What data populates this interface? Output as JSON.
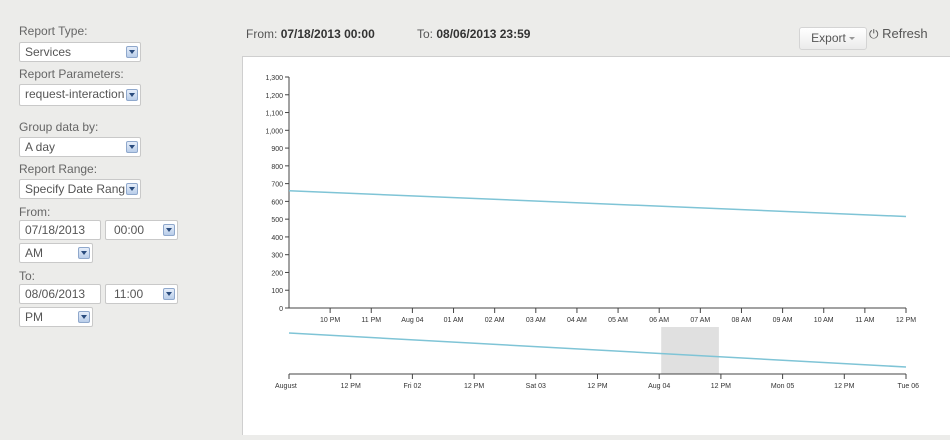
{
  "sidebar": {
    "report_type_label": "Report Type:",
    "report_type_value": "Services",
    "report_params_label": "Report Parameters:",
    "report_params_value": "request-interaction",
    "group_by_label": "Group data by:",
    "group_by_value": "A day",
    "report_range_label": "Report Range:",
    "report_range_value": "Specify Date Rang",
    "from_label": "From:",
    "from_date": "07/18/2013",
    "from_time": "00:00",
    "from_ampm": "AM",
    "to_label": "To:",
    "to_date": "08/06/2013",
    "to_time": "11:00",
    "to_ampm": "PM"
  },
  "header": {
    "from_label": "From:",
    "from_value": "07/18/2013 00:00",
    "to_label": "To:",
    "to_value": "08/06/2013 23:59",
    "export_label": "Export",
    "refresh_label": "Refresh"
  },
  "colors": {
    "line": "#7fc4d6",
    "brush": "#e0e0e0",
    "background": "#ececea"
  },
  "chart_data": [
    {
      "type": "line",
      "ylim": [
        0,
        1300
      ],
      "y_ticks": [
        "0",
        "100",
        "200",
        "300",
        "400",
        "500",
        "600",
        "700",
        "800",
        "900",
        "1,000",
        "1,100",
        "1,200",
        "1,300"
      ],
      "x_tick_labels": [
        "10 PM",
        "11 PM",
        "Aug 04",
        "01 AM",
        "02 AM",
        "03 AM",
        "04 AM",
        "05 AM",
        "06 AM",
        "07 AM",
        "08 AM",
        "09 AM",
        "10 AM",
        "11 AM",
        "12 PM"
      ],
      "series": [
        {
          "x": [
            "start",
            "end"
          ],
          "values": [
            660,
            515
          ]
        }
      ],
      "grid": false
    },
    {
      "type": "line",
      "x_tick_labels": [
        "August",
        "12 PM",
        "Fri 02",
        "12 PM",
        "Sat 03",
        "12 PM",
        "Aug 04",
        "12 PM",
        "Mon 05",
        "12 PM",
        "Tue 06"
      ],
      "series": [
        {
          "x": [
            "start",
            "end"
          ],
          "values": [
            660,
            515
          ]
        }
      ],
      "brush_range": [
        "Aug 04",
        "12 PM"
      ]
    }
  ]
}
